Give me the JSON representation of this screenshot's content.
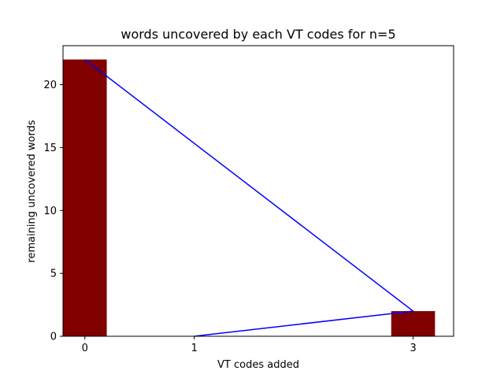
{
  "chart_data": {
    "type": "bar",
    "title": "words uncovered by each VT codes for n=5",
    "xlabel": "VT codes added",
    "ylabel": "remaining uncovered words",
    "xlim": [
      -0.2,
      3.37
    ],
    "ylim": [
      0,
      23.1
    ],
    "x_ticks": [
      0,
      1,
      3
    ],
    "x_tick_labels": [
      "0",
      "1",
      "3"
    ],
    "y_ticks": [
      0,
      5,
      10,
      15,
      20
    ],
    "y_tick_labels": [
      "0",
      "5",
      "10",
      "15",
      "20"
    ],
    "grid": false,
    "legend": "none",
    "bar_color": "#800000",
    "line_color": "#0000ff",
    "bars": {
      "x": [
        0,
        3
      ],
      "values": [
        22,
        2
      ],
      "width": 0.4
    },
    "line": {
      "points": [
        {
          "x": 0,
          "y": 22
        },
        {
          "x": 3,
          "y": 2
        },
        {
          "x": 1,
          "y": 0
        }
      ]
    }
  }
}
